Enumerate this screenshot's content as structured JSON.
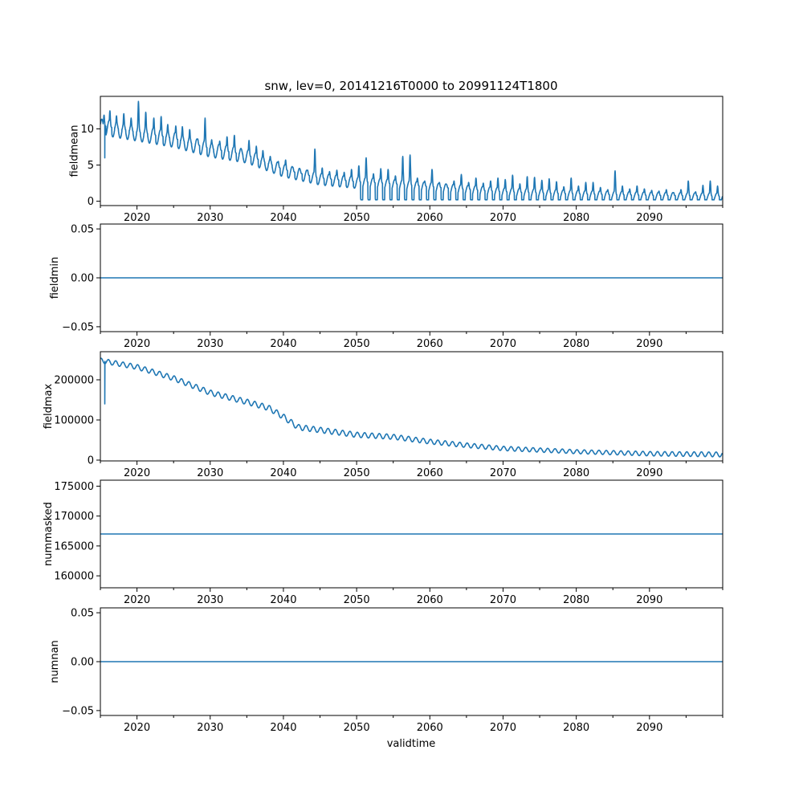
{
  "figure": {
    "title": "snw, lev=0, 20141216T0000 to 20991124T1800",
    "xlabel": "validtime"
  },
  "colors": {
    "series": "#1f77b4"
  },
  "chart_data": [
    {
      "type": "line",
      "name": "fieldmean",
      "ylabel": "fieldmean",
      "xlim": [
        2015.0,
        2100.0
      ],
      "ylim": [
        -0.6,
        14.5
      ],
      "xticks": [
        2020,
        2030,
        2040,
        2050,
        2060,
        2070,
        2080,
        2090
      ],
      "xtick_labels": [
        "2020",
        "2030",
        "2040",
        "2050",
        "2060",
        "2070",
        "2080",
        "2090"
      ],
      "yticks": [
        0,
        5,
        10
      ],
      "ytick_labels": [
        "0",
        "5",
        "10"
      ],
      "generator": "seasonal",
      "trend": [
        [
          2015,
          10.5
        ],
        [
          2020,
          9.6
        ],
        [
          2025,
          8.7
        ],
        [
          2030,
          7.3
        ],
        [
          2035,
          6.4
        ],
        [
          2040,
          4.4
        ],
        [
          2045,
          3.2
        ],
        [
          2050,
          2.7
        ],
        [
          2055,
          2.4
        ],
        [
          2060,
          2.0
        ],
        [
          2070,
          1.3
        ],
        [
          2080,
          1.0
        ],
        [
          2090,
          0.8
        ],
        [
          2100,
          0.7
        ]
      ],
      "amplitude": [
        [
          2015,
          1.1
        ],
        [
          2030,
          1.0
        ],
        [
          2045,
          0.8
        ],
        [
          2060,
          0.7
        ],
        [
          2100,
          0.5
        ]
      ],
      "dropout": {
        "x": 2015.6,
        "y": 6.0
      },
      "peaks": [
        [
          2015.5,
          11.9
        ],
        [
          2016.3,
          12.5
        ],
        [
          2017.2,
          11.8
        ],
        [
          2018.2,
          12.1
        ],
        [
          2019.2,
          11.5
        ],
        [
          2020.2,
          13.8
        ],
        [
          2021.2,
          12.3
        ],
        [
          2022.3,
          11.5
        ],
        [
          2023.3,
          11.7
        ],
        [
          2024.2,
          10.6
        ],
        [
          2025.3,
          10.4
        ],
        [
          2026.2,
          10.3
        ],
        [
          2027.2,
          9.9
        ],
        [
          2028.3,
          8.6
        ],
        [
          2029.3,
          11.5
        ],
        [
          2030.2,
          8.5
        ],
        [
          2031.3,
          8.3
        ],
        [
          2032.3,
          8.9
        ],
        [
          2033.3,
          9.1
        ],
        [
          2034.2,
          7.2
        ],
        [
          2035.3,
          8.4
        ],
        [
          2036.3,
          7.6
        ],
        [
          2037.2,
          7.0
        ],
        [
          2038.2,
          6.2
        ],
        [
          2039.3,
          5.5
        ],
        [
          2040.3,
          5.7
        ],
        [
          2041.3,
          4.7
        ],
        [
          2042.3,
          4.2
        ],
        [
          2043.3,
          4.3
        ],
        [
          2044.3,
          7.2
        ],
        [
          2045.3,
          4.6
        ],
        [
          2046.3,
          4.1
        ],
        [
          2047.3,
          4.3
        ],
        [
          2048.3,
          4.0
        ],
        [
          2049.3,
          4.4
        ],
        [
          2050.3,
          4.9
        ],
        [
          2051.3,
          6.0
        ],
        [
          2052.3,
          3.8
        ],
        [
          2053.3,
          4.5
        ],
        [
          2054.3,
          4.4
        ],
        [
          2055.3,
          3.5
        ],
        [
          2056.3,
          6.2
        ],
        [
          2057.3,
          6.4
        ],
        [
          2058.3,
          3.2
        ],
        [
          2059.3,
          2.8
        ],
        [
          2060.3,
          4.4
        ],
        [
          2061.3,
          2.6
        ],
        [
          2062.3,
          2.3
        ],
        [
          2063.3,
          2.8
        ],
        [
          2064.3,
          3.7
        ],
        [
          2065.3,
          2.6
        ],
        [
          2066.3,
          3.2
        ],
        [
          2067.3,
          2.5
        ],
        [
          2068.3,
          2.8
        ],
        [
          2069.3,
          3.2
        ],
        [
          2070.3,
          3.0
        ],
        [
          2071.3,
          3.6
        ],
        [
          2072.3,
          2.4
        ],
        [
          2073.3,
          3.4
        ],
        [
          2074.3,
          3.3
        ],
        [
          2075.3,
          2.9
        ],
        [
          2076.3,
          3.1
        ],
        [
          2077.3,
          2.7
        ],
        [
          2078.3,
          2.0
        ],
        [
          2079.3,
          3.2
        ],
        [
          2080.3,
          2.1
        ],
        [
          2081.3,
          2.6
        ],
        [
          2082.3,
          2.6
        ],
        [
          2083.3,
          1.9
        ],
        [
          2084.3,
          1.6
        ],
        [
          2085.3,
          4.2
        ],
        [
          2086.3,
          2.1
        ],
        [
          2087.3,
          1.7
        ],
        [
          2088.3,
          2.1
        ],
        [
          2089.3,
          1.7
        ],
        [
          2090.3,
          1.5
        ],
        [
          2091.3,
          1.4
        ],
        [
          2092.3,
          1.6
        ],
        [
          2093.3,
          1.2
        ],
        [
          2094.3,
          1.6
        ],
        [
          2095.3,
          2.8
        ],
        [
          2096.3,
          1.3
        ],
        [
          2097.3,
          2.2
        ],
        [
          2098.3,
          2.8
        ],
        [
          2099.3,
          2.1
        ]
      ]
    },
    {
      "type": "line",
      "name": "fieldmin",
      "ylabel": "fieldmin",
      "xlim": [
        2015.0,
        2100.0
      ],
      "ylim": [
        -0.055,
        0.055
      ],
      "xticks": [
        2020,
        2030,
        2040,
        2050,
        2060,
        2070,
        2080,
        2090
      ],
      "xtick_labels": [
        "2020",
        "2030",
        "2040",
        "2050",
        "2060",
        "2070",
        "2080",
        "2090"
      ],
      "yticks": [
        -0.05,
        0.0,
        0.05
      ],
      "ytick_labels": [
        "−0.05",
        "0.00",
        "0.05"
      ],
      "generator": "constant",
      "constant": 0.0
    },
    {
      "type": "line",
      "name": "fieldmax",
      "ylabel": "fieldmax",
      "xlim": [
        2015.0,
        2100.0
      ],
      "ylim": [
        -2000,
        270000
      ],
      "xticks": [
        2020,
        2030,
        2040,
        2050,
        2060,
        2070,
        2080,
        2090
      ],
      "xtick_labels": [
        "2020",
        "2030",
        "2040",
        "2050",
        "2060",
        "2070",
        "2080",
        "2090"
      ],
      "yticks": [
        0,
        100000,
        200000
      ],
      "ytick_labels": [
        "0",
        "100000",
        "200000"
      ],
      "generator": "oscillating",
      "trend": [
        [
          2015,
          248000
        ],
        [
          2020,
          232000
        ],
        [
          2025,
          204000
        ],
        [
          2030,
          168000
        ],
        [
          2035,
          145000
        ],
        [
          2038,
          130000
        ],
        [
          2040,
          108000
        ],
        [
          2042,
          82000
        ],
        [
          2045,
          75000
        ],
        [
          2050,
          63000
        ],
        [
          2055,
          58000
        ],
        [
          2060,
          46000
        ],
        [
          2065,
          37000
        ],
        [
          2070,
          29000
        ],
        [
          2080,
          21000
        ],
        [
          2090,
          16000
        ],
        [
          2100,
          14000
        ]
      ],
      "amplitude": [
        [
          2015,
          6000
        ],
        [
          2040,
          7000
        ],
        [
          2060,
          6000
        ],
        [
          2080,
          5000
        ],
        [
          2100,
          6000
        ]
      ],
      "dropout": {
        "x": 2015.6,
        "y": 140000
      }
    },
    {
      "type": "line",
      "name": "nummasked",
      "ylabel": "nummasked",
      "xlim": [
        2015.0,
        2100.0
      ],
      "ylim": [
        158000,
        176000
      ],
      "xticks": [
        2020,
        2030,
        2040,
        2050,
        2060,
        2070,
        2080,
        2090
      ],
      "xtick_labels": [
        "2020",
        "2030",
        "2040",
        "2050",
        "2060",
        "2070",
        "2080",
        "2090"
      ],
      "yticks": [
        160000,
        165000,
        170000,
        175000
      ],
      "ytick_labels": [
        "160000",
        "165000",
        "170000",
        "175000"
      ],
      "generator": "constant",
      "constant": 167000
    },
    {
      "type": "line",
      "name": "numnan",
      "ylabel": "numnan",
      "xlim": [
        2015.0,
        2100.0
      ],
      "ylim": [
        -0.055,
        0.055
      ],
      "xticks": [
        2020,
        2030,
        2040,
        2050,
        2060,
        2070,
        2080,
        2090
      ],
      "xtick_labels": [
        "2020",
        "2030",
        "2040",
        "2050",
        "2060",
        "2070",
        "2080",
        "2090"
      ],
      "yticks": [
        -0.05,
        0.0,
        0.05
      ],
      "ytick_labels": [
        "−0.05",
        "0.00",
        "0.05"
      ],
      "generator": "constant",
      "constant": 0.0
    }
  ]
}
